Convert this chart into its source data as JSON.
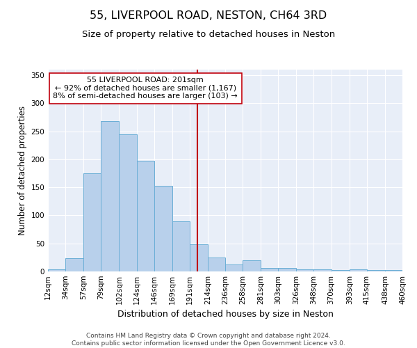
{
  "title": "55, LIVERPOOL ROAD, NESTON, CH64 3RD",
  "subtitle": "Size of property relative to detached houses in Neston",
  "xlabel": "Distribution of detached houses by size in Neston",
  "ylabel": "Number of detached properties",
  "bar_color": "#b8d0eb",
  "bar_edge_color": "#6aaed6",
  "background_color": "#e8eef8",
  "grid_color": "#ffffff",
  "annotation_line_color": "#c0000c",
  "annotation_box_color": "#ffffff",
  "annotation_box_edge": "#c0000c",
  "annotation_text": "55 LIVERPOOL ROAD: 201sqm\n← 92% of detached houses are smaller (1,167)\n8% of semi-detached houses are larger (103) →",
  "property_line_x": 201,
  "bins": [
    12,
    34,
    57,
    79,
    102,
    124,
    146,
    169,
    191,
    214,
    236,
    258,
    281,
    303,
    326,
    348,
    370,
    393,
    415,
    438,
    460
  ],
  "bin_labels": [
    "12sqm",
    "34sqm",
    "57sqm",
    "79sqm",
    "102sqm",
    "124sqm",
    "146sqm",
    "169sqm",
    "191sqm",
    "214sqm",
    "236sqm",
    "258sqm",
    "281sqm",
    "303sqm",
    "326sqm",
    "348sqm",
    "370sqm",
    "393sqm",
    "415sqm",
    "438sqm",
    "460sqm"
  ],
  "counts": [
    4,
    23,
    175,
    268,
    245,
    197,
    153,
    89,
    48,
    25,
    13,
    20,
    6,
    6,
    4,
    4,
    2,
    4,
    2,
    2
  ],
  "ylim": [
    0,
    360
  ],
  "yticks": [
    0,
    50,
    100,
    150,
    200,
    250,
    300,
    350
  ],
  "footer_text": "Contains HM Land Registry data © Crown copyright and database right 2024.\nContains public sector information licensed under the Open Government Licence v3.0.",
  "title_fontsize": 11.5,
  "subtitle_fontsize": 9.5,
  "xlabel_fontsize": 9,
  "ylabel_fontsize": 8.5,
  "tick_fontsize": 7.5,
  "footer_fontsize": 6.5,
  "annotation_fontsize": 8
}
